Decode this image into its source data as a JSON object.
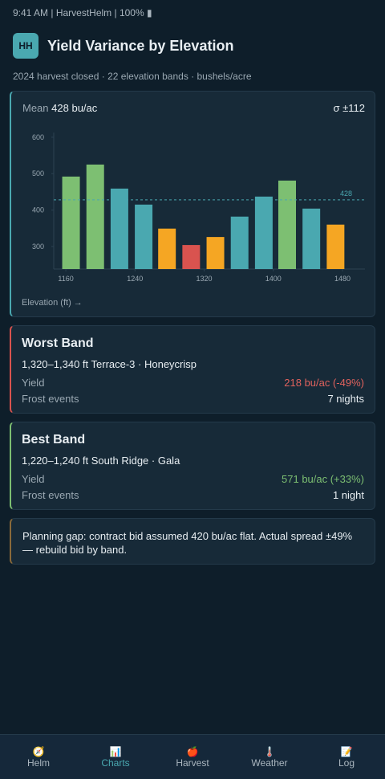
{
  "status_bar": "9:41 AM | HarvestHelm | 100% ▮",
  "header": {
    "badge": "HH",
    "title": "Yield Variance by Elevation",
    "subtitle": "2024 harvest closed · 22 elevation bands · bushels/acre"
  },
  "stats": {
    "mean_label": "Mean",
    "mean": "428 bu/ac",
    "sigma": "σ ±112"
  },
  "chart_data": {
    "type": "bar",
    "x": [
      1166,
      1194,
      1222,
      1250,
      1277,
      1305,
      1333,
      1361,
      1389,
      1416,
      1444,
      1472
    ],
    "values": [
      492,
      525,
      459,
      415,
      349,
      304,
      326,
      382,
      437,
      481,
      404,
      360
    ],
    "colors": [
      "#7dbf72",
      "#7dbf72",
      "#4aa8b0",
      "#4aa8b0",
      "#f5a623",
      "#d9534f",
      "#f5a623",
      "#4aa8b0",
      "#4aa8b0",
      "#7dbf72",
      "#4aa8b0",
      "#f5a623"
    ],
    "xlim": [
      1146,
      1506
    ],
    "xticks": [
      1160,
      1240,
      1320,
      1400,
      1480
    ],
    "ylim": [
      238,
      613
    ],
    "yticks": [
      300,
      400,
      500,
      600
    ],
    "reference_line": {
      "value": 428,
      "color": "#4aa8b0"
    },
    "x_label": "Elevation (ft) →"
  },
  "worst": {
    "title": "Worst Band",
    "detail": "1,320–1,340 ft Terrace-3 · Honeycrisp",
    "rows": [
      {
        "label": "Yield",
        "value": "218 bu/ac (-49%)"
      },
      {
        "label": "Frost events",
        "value": "7 nights"
      }
    ]
  },
  "best": {
    "title": "Best Band",
    "detail": "1,220–1,240 ft South Ridge · Gala",
    "rows": [
      {
        "label": "Yield",
        "value": "571 bu/ac (+33%)"
      },
      {
        "label": "Frost events",
        "value": "1 night"
      }
    ]
  },
  "note": "Planning gap: contract bid assumed 420 bu/ac flat. Actual spread ±49% — rebuild bid by band.",
  "nav": [
    {
      "icon": "🧭",
      "label": "Helm"
    },
    {
      "icon": "📊",
      "label": "Charts"
    },
    {
      "icon": "🍎",
      "label": "Harvest"
    },
    {
      "icon": "🌡️",
      "label": "Weather"
    },
    {
      "icon": "📝",
      "label": "Log"
    }
  ]
}
